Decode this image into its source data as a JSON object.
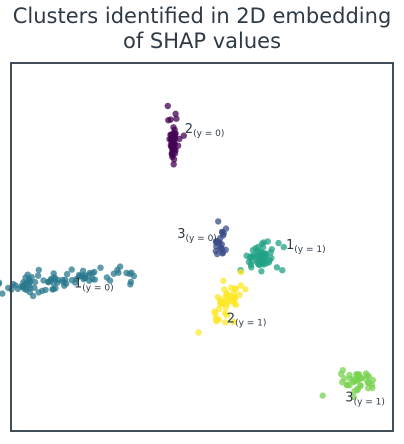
{
  "title_lines": [
    "Clusters identified in 2D embedding",
    "of SHAP values"
  ],
  "chart_data": {
    "type": "scatter",
    "title": "Clusters identified in 2D embedding of SHAP values",
    "xlabel": "",
    "ylabel": "",
    "xlim": [
      0,
      100
    ],
    "ylim": [
      0,
      100
    ],
    "grid": false,
    "axes_ticks": false,
    "clusters": [
      {
        "id": "2_y0",
        "label_main": "2",
        "label_sub": "(y = 0)",
        "color": "#440154",
        "center": [
          42.5,
          79
        ],
        "spread": [
          0.7,
          3.2
        ],
        "count": 45,
        "label_pos": [
          45.5,
          81
        ]
      },
      {
        "id": "3_y0",
        "label_main": "3",
        "label_sub": "(y = 0)",
        "color": "#3b4e8a",
        "center": [
          54.7,
          51
        ],
        "spread": [
          0.9,
          1.8
        ],
        "count": 22,
        "label_pos": [
          43.5,
          52.5
        ]
      },
      {
        "id": "1_y1",
        "label_main": "1",
        "label_sub": "(y = 1)",
        "color": "#21a285",
        "center": [
          65,
          47
        ],
        "spread": [
          2.6,
          2.2
        ],
        "count": 55,
        "label_pos": [
          72,
          49.5
        ]
      },
      {
        "id": "1_y0",
        "label_main": "1",
        "label_sub": "(y = 0)",
        "color": "#2a788e",
        "center": [
          13,
          41
        ],
        "spread": [
          10.5,
          1.4
        ],
        "count": 90,
        "label_pos": [
          16.5,
          39
        ]
      },
      {
        "id": "2_y1",
        "label_main": "2",
        "label_sub": "(y = 1)",
        "color": "#fde725",
        "center": [
          57,
          35.5
        ],
        "spread": [
          1.8,
          2.5
        ],
        "count": 45,
        "label_pos": [
          56.5,
          29.5
        ]
      },
      {
        "id": "3_y1",
        "label_main": "3",
        "label_sub": "(y = 1)",
        "color": "#7ad151",
        "center": [
          91,
          13.5
        ],
        "spread": [
          2.2,
          1.6
        ],
        "count": 40,
        "label_pos": [
          87.5,
          8
        ]
      }
    ]
  }
}
